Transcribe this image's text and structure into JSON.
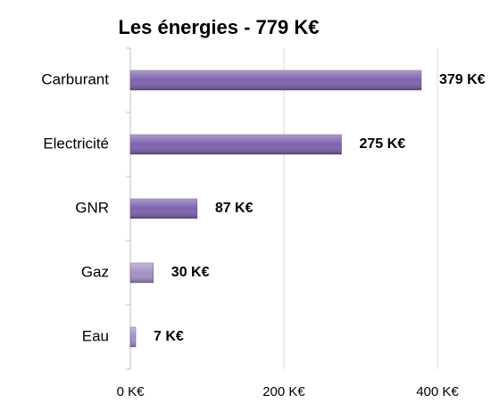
{
  "chart_data": {
    "type": "barh",
    "title": "Les énergies - 779 K€",
    "categories": [
      "Carburant",
      "Electricité",
      "GNR",
      "Gaz",
      "Eau"
    ],
    "values": [
      379,
      275,
      87,
      30,
      7
    ],
    "value_labels": [
      "379 K€",
      "275 K€",
      "87 K€",
      "30 K€",
      "7 K€"
    ],
    "colors": [
      "#7d63ad",
      "#7d63ad",
      "#7d63ad",
      "#a391c6",
      "#a391c6"
    ],
    "xlim": [
      0,
      400
    ],
    "xticks": [
      {
        "value": 0,
        "label": "0 K€"
      },
      {
        "value": 200,
        "label": "200 K€"
      },
      {
        "value": 400,
        "label": "400 K€"
      }
    ],
    "grid": true
  }
}
